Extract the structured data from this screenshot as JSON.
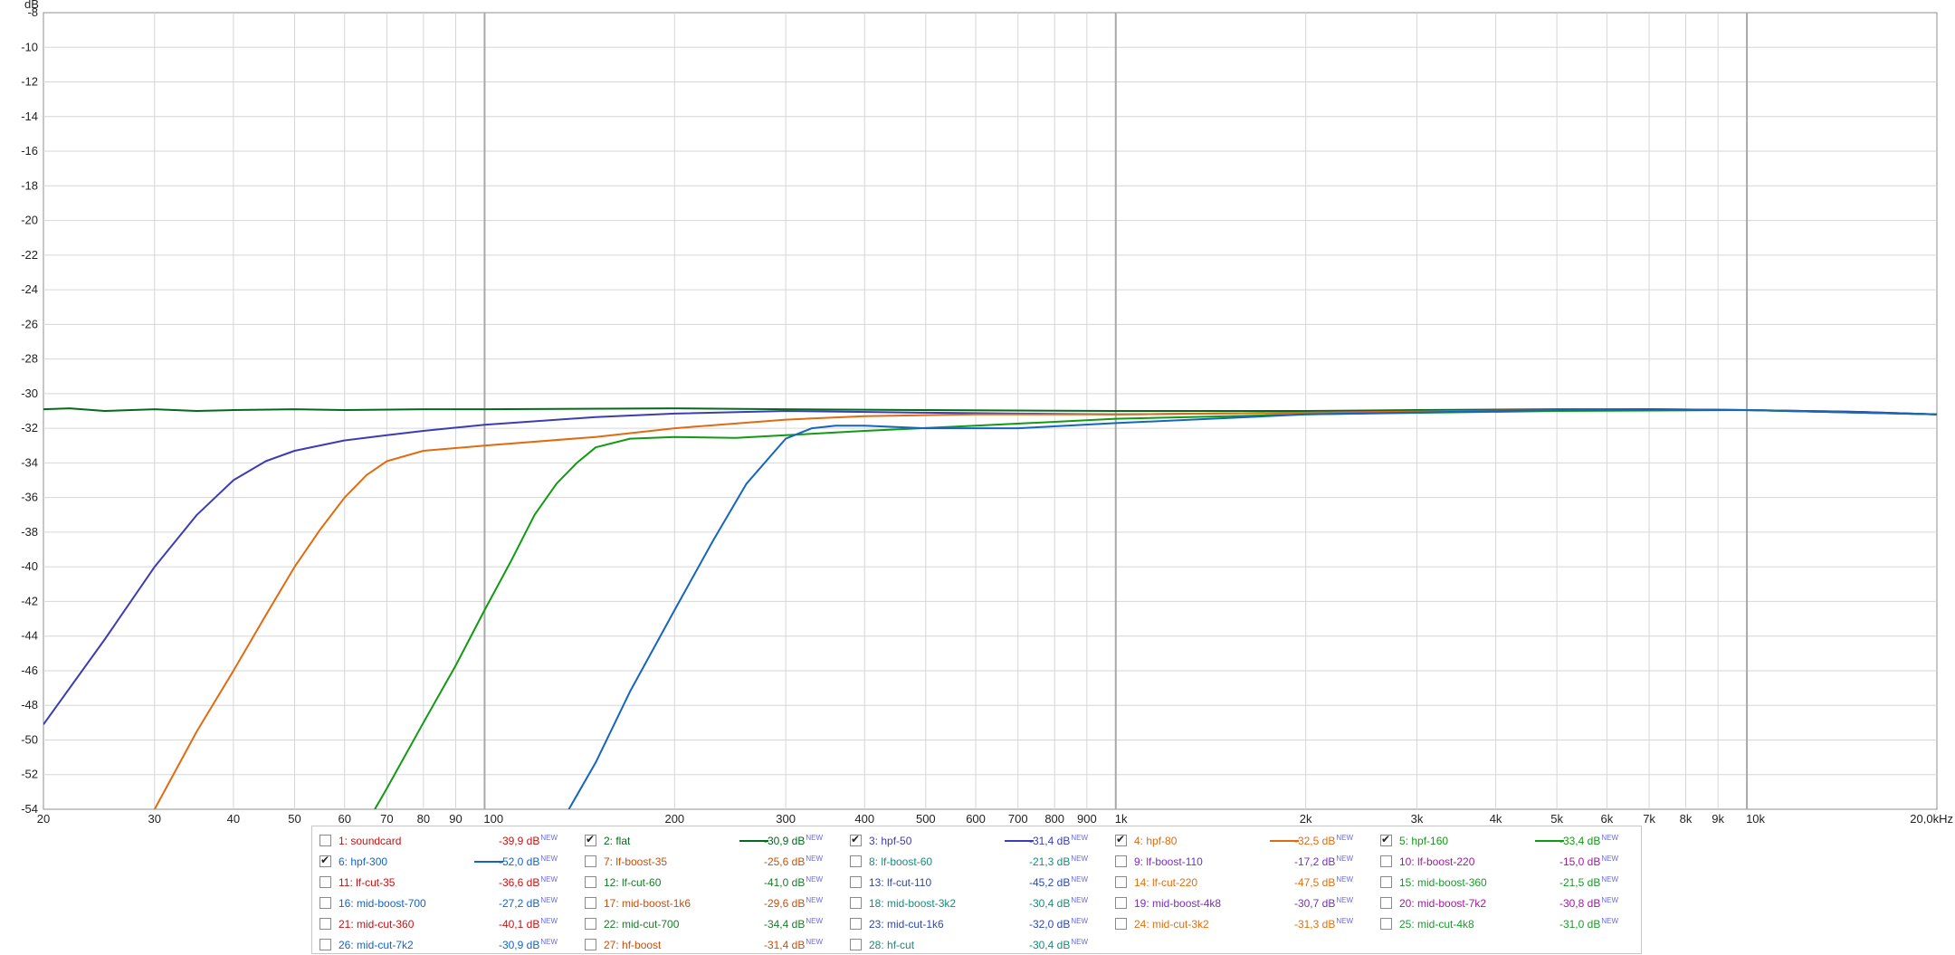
{
  "chart_data": {
    "type": "line",
    "x_scale": "log",
    "xlim": [
      20,
      20000
    ],
    "ylim": [
      -54,
      -8
    ],
    "ylabel": "dB",
    "grid": true,
    "y_ticks": [
      "-8",
      "-10",
      "-12",
      "-14",
      "-16",
      "-18",
      "-20",
      "-22",
      "-24",
      "-26",
      "-28",
      "-30",
      "-32",
      "-34",
      "-36",
      "-38",
      "-40",
      "-42",
      "-44",
      "-46",
      "-48",
      "-50",
      "-52",
      "-54"
    ],
    "x_ticks": [
      {
        "v": 20,
        "label": "20"
      },
      {
        "v": 30,
        "label": "30"
      },
      {
        "v": 40,
        "label": "40"
      },
      {
        "v": 50,
        "label": "50"
      },
      {
        "v": 60,
        "label": "60"
      },
      {
        "v": 70,
        "label": "70"
      },
      {
        "v": 80,
        "label": "80"
      },
      {
        "v": 90,
        "label": "90"
      },
      {
        "v": 100,
        "label": "100"
      },
      {
        "v": 200,
        "label": "200"
      },
      {
        "v": 300,
        "label": "300"
      },
      {
        "v": 400,
        "label": "400"
      },
      {
        "v": 500,
        "label": "500"
      },
      {
        "v": 600,
        "label": "600"
      },
      {
        "v": 700,
        "label": "700"
      },
      {
        "v": 800,
        "label": "800"
      },
      {
        "v": 900,
        "label": "900"
      },
      {
        "v": 1000,
        "label": "1k"
      },
      {
        "v": 2000,
        "label": "2k"
      },
      {
        "v": 3000,
        "label": "3k"
      },
      {
        "v": 4000,
        "label": "4k"
      },
      {
        "v": 5000,
        "label": "5k"
      },
      {
        "v": 6000,
        "label": "6k"
      },
      {
        "v": 7000,
        "label": "7k"
      },
      {
        "v": 8000,
        "label": "8k"
      },
      {
        "v": 9000,
        "label": "9k"
      },
      {
        "v": 10000,
        "label": "10k"
      },
      {
        "v": 20000,
        "label": "20,0kHz"
      }
    ],
    "series": [
      {
        "name": "2: flat",
        "color": "#006b1a",
        "x": [
          20,
          22,
          25,
          30,
          35,
          40,
          50,
          60,
          80,
          100,
          200,
          300,
          500,
          1000,
          2000,
          3000,
          5000,
          7000,
          10000,
          15000,
          20000
        ],
        "y": [
          -30.9,
          -30.85,
          -31.0,
          -30.9,
          -31.0,
          -30.95,
          -30.9,
          -30.95,
          -30.9,
          -30.9,
          -30.85,
          -30.9,
          -30.95,
          -31.0,
          -31.0,
          -30.95,
          -30.9,
          -30.9,
          -30.95,
          -31.05,
          -31.2
        ]
      },
      {
        "name": "3: hpf-50",
        "color": "#3c3cb4",
        "x": [
          20,
          25,
          30,
          35,
          40,
          45,
          50,
          60,
          70,
          80,
          100,
          150,
          200,
          300,
          500,
          700,
          1000,
          2000,
          3000,
          5000,
          7000,
          10000,
          15000,
          20000
        ],
        "y": [
          -49.1,
          -44.2,
          -40.0,
          -37.0,
          -35.0,
          -33.9,
          -33.3,
          -32.7,
          -32.4,
          -32.15,
          -31.8,
          -31.35,
          -31.15,
          -31.0,
          -31.1,
          -31.15,
          -31.2,
          -31.1,
          -31.0,
          -30.95,
          -30.9,
          -30.95,
          -31.05,
          -31.2
        ]
      },
      {
        "name": "4: hpf-80",
        "color": "#e06b10",
        "x": [
          30,
          35,
          40,
          45,
          50,
          55,
          60,
          65,
          70,
          80,
          100,
          150,
          200,
          300,
          400,
          600,
          1000,
          2000,
          5000,
          10000,
          20000
        ],
        "y": [
          -54.0,
          -49.5,
          -46.0,
          -42.8,
          -40.0,
          -37.8,
          -36.0,
          -34.7,
          -33.9,
          -33.3,
          -33.0,
          -32.5,
          -32.0,
          -31.5,
          -31.3,
          -31.2,
          -31.2,
          -31.1,
          -30.95,
          -30.95,
          -31.2
        ]
      },
      {
        "name": "5: hpf-160",
        "color": "#129a12",
        "x": [
          67,
          70,
          80,
          90,
          100,
          110,
          120,
          130,
          140,
          150,
          170,
          200,
          250,
          300,
          400,
          600,
          1000,
          2000,
          5000,
          10000,
          20000
        ],
        "y": [
          -54.0,
          -52.8,
          -49.0,
          -45.7,
          -42.5,
          -39.7,
          -37.0,
          -35.2,
          -34.0,
          -33.1,
          -32.6,
          -32.5,
          -32.55,
          -32.4,
          -32.15,
          -31.85,
          -31.45,
          -31.2,
          -31.0,
          -30.95,
          -31.2
        ]
      },
      {
        "name": "6: hpf-300",
        "color": "#1565c0",
        "x": [
          136,
          150,
          170,
          200,
          230,
          260,
          300,
          330,
          360,
          400,
          500,
          700,
          1000,
          2000,
          5000,
          10000,
          20000
        ],
        "y": [
          -54.0,
          -51.3,
          -47.2,
          -42.5,
          -38.5,
          -35.2,
          -32.6,
          -32.0,
          -31.85,
          -31.85,
          -32.0,
          -32.0,
          -31.7,
          -31.2,
          -30.95,
          -30.95,
          -31.2
        ]
      }
    ]
  },
  "legend": {
    "new_tag": "NEW",
    "rows": [
      [
        {
          "label": "1: soundcard",
          "value": "-39,9 dB",
          "color": "#cc1010",
          "checked": false,
          "swatch": false
        },
        {
          "label": "2: flat",
          "value": "-30,9 dB",
          "color": "#006b1a",
          "checked": true,
          "swatch": true
        },
        {
          "label": "3: hpf-50",
          "value": "-31,4 dB",
          "color": "#3c3cb4",
          "checked": true,
          "swatch": true
        },
        {
          "label": "4: hpf-80",
          "value": "-32,5 dB",
          "color": "#e06b10",
          "checked": true,
          "swatch": true
        },
        {
          "label": "5: hpf-160",
          "value": "-33,4 dB",
          "color": "#129a12",
          "checked": true,
          "swatch": true
        }
      ],
      [
        {
          "label": "6: hpf-300",
          "value": "-52,0 dB",
          "color": "#1565c0",
          "checked": true,
          "swatch": true
        },
        {
          "label": "7: lf-boost-35",
          "value": "-25,6 dB",
          "color": "#c8500a",
          "checked": false,
          "swatch": false
        },
        {
          "label": "8: lf-boost-60",
          "value": "-21,3 dB",
          "color": "#1a8a7a",
          "checked": false,
          "swatch": false
        },
        {
          "label": "9: lf-boost-110",
          "value": "-17,2 dB",
          "color": "#7a2fc0",
          "checked": false,
          "swatch": false
        },
        {
          "label": "10: lf-boost-220",
          "value": "-15,0 dB",
          "color": "#a01aa0",
          "checked": false,
          "swatch": false
        }
      ],
      [
        {
          "label": "11: lf-cut-35",
          "value": "-36,6 dB",
          "color": "#cc1010",
          "checked": false,
          "swatch": false
        },
        {
          "label": "12: lf-cut-60",
          "value": "-41,0 dB",
          "color": "#1a7a2a",
          "checked": false,
          "swatch": false
        },
        {
          "label": "13: lf-cut-110",
          "value": "-45,2 dB",
          "color": "#2a4ab4",
          "checked": false,
          "swatch": false
        },
        {
          "label": "14: lf-cut-220",
          "value": "-47,5 dB",
          "color": "#e07010",
          "checked": false,
          "swatch": false
        },
        {
          "label": "15: mid-boost-360",
          "value": "-21,5 dB",
          "color": "#1a9a2a",
          "checked": false,
          "swatch": false
        }
      ],
      [
        {
          "label": "16: mid-boost-700",
          "value": "-27,2 dB",
          "color": "#1565c0",
          "checked": false,
          "swatch": false
        },
        {
          "label": "17: mid-boost-1k6",
          "value": "-29,6 dB",
          "color": "#c8500a",
          "checked": false,
          "swatch": false
        },
        {
          "label": "18: mid-boost-3k2",
          "value": "-30,4 dB",
          "color": "#1a8a7a",
          "checked": false,
          "swatch": false
        },
        {
          "label": "19: mid-boost-4k8",
          "value": "-30,7 dB",
          "color": "#7a2fc0",
          "checked": false,
          "swatch": false
        },
        {
          "label": "20: mid-boost-7k2",
          "value": "-30,8 dB",
          "color": "#a01aa0",
          "checked": false,
          "swatch": false
        }
      ],
      [
        {
          "label": "21: mid-cut-360",
          "value": "-40,1 dB",
          "color": "#cc1010",
          "checked": false,
          "swatch": false
        },
        {
          "label": "22: mid-cut-700",
          "value": "-34,4 dB",
          "color": "#1a7a2a",
          "checked": false,
          "swatch": false
        },
        {
          "label": "23: mid-cut-1k6",
          "value": "-32,0 dB",
          "color": "#2a4ab4",
          "checked": false,
          "swatch": false
        },
        {
          "label": "24: mid-cut-3k2",
          "value": "-31,3 dB",
          "color": "#e07010",
          "checked": false,
          "swatch": false
        },
        {
          "label": "25: mid-cut-4k8",
          "value": "-31,0 dB",
          "color": "#1a9a2a",
          "checked": false,
          "swatch": false
        }
      ],
      [
        {
          "label": "26: mid-cut-7k2",
          "value": "-30,9 dB",
          "color": "#1565c0",
          "checked": false,
          "swatch": false
        },
        {
          "label": "27: hf-boost",
          "value": "-31,4 dB",
          "color": "#c8500a",
          "checked": false,
          "swatch": false
        },
        {
          "label": "28: hf-cut",
          "value": "-30,4 dB",
          "color": "#1a8a7a",
          "checked": false,
          "swatch": false
        }
      ]
    ]
  }
}
